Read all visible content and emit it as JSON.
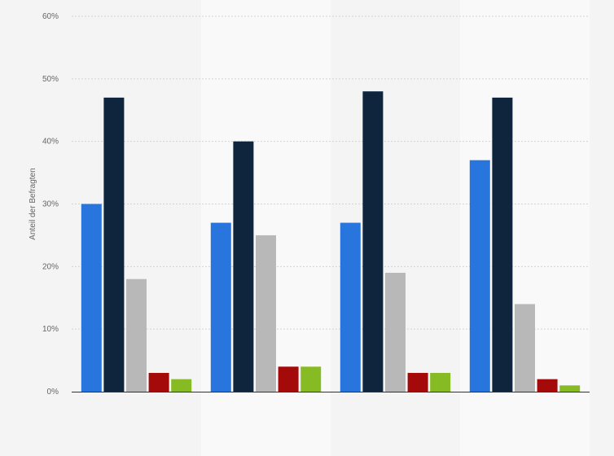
{
  "chart_data": {
    "type": "bar",
    "title": "",
    "xlabel": "",
    "ylabel": "Anteil der Befragten",
    "ylim": [
      0,
      60
    ],
    "yticks": [
      0,
      10,
      20,
      30,
      40,
      50,
      60
    ],
    "ytick_suffix": "%",
    "grid": true,
    "categories": [
      "",
      "",
      "",
      ""
    ],
    "series": [
      {
        "color": "#2876dd",
        "values": [
          30,
          27,
          27,
          37
        ]
      },
      {
        "color": "#0f253d",
        "values": [
          47,
          40,
          48,
          47
        ]
      },
      {
        "color": "#b8b8b8",
        "values": [
          18,
          25,
          19,
          14
        ]
      },
      {
        "color": "#a40a0a",
        "values": [
          3,
          4,
          3,
          2
        ]
      },
      {
        "color": "#87bb23",
        "values": [
          2,
          4,
          3,
          1
        ]
      }
    ]
  },
  "colors": {
    "background": "#f4f4f4",
    "band_alt": "#f9f9f9",
    "grid": "#d3d3d3",
    "axis": "#333333"
  }
}
